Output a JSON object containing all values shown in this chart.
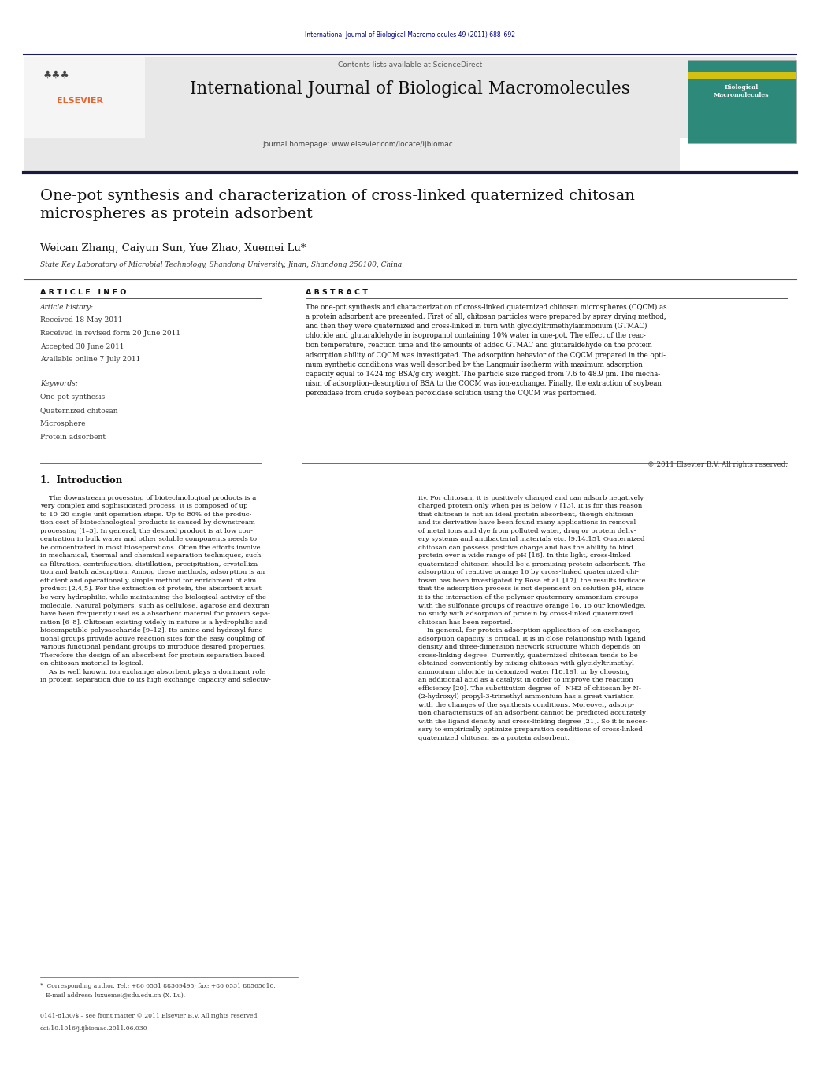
{
  "page_width": 10.21,
  "page_height": 13.51,
  "dpi": 100,
  "background": "#ffffff",
  "top_link_text": "International Journal of Biological Macromolecules 49 (2011) 688–692",
  "top_link_color": "#00008B",
  "header_bg_color": "#e8e8e8",
  "header_line_color": "#1a1a6e",
  "contents_text": "Contents lists available at ",
  "sciencedirect_text": "ScienceDirect",
  "sciencedirect_color": "#1a7abf",
  "journal_name": "International Journal of Biological Macromolecules",
  "journal_homepage_text": "journal homepage: ",
  "journal_url": "www.elsevier.com/locate/ijbiomac",
  "journal_url_color": "#1a7abf",
  "article_title": "One-pot synthesis and characterization of cross-linked quaternized chitosan\nmicrospheres as protein adsorbent",
  "authors": "Weican Zhang, Caiyun Sun, Yue Zhao, Xuemei Lu*",
  "affiliation": "State Key Laboratory of Microbial Technology, Shandong University, Jinan, Shandong 250100, China",
  "article_info_title": "A R T I C L E   I N F O",
  "abstract_title": "A B S T R A C T",
  "article_history_label": "Article history:",
  "received": "Received 18 May 2011",
  "received_revised": "Received in revised form 20 June 2011",
  "accepted": "Accepted 30 June 2011",
  "available": "Available online 7 July 2011",
  "keywords_label": "Keywords:",
  "keywords": [
    "One-pot synthesis",
    "Quaternized chitosan",
    "Microsphere",
    "Protein adsorbent"
  ],
  "abstract_text": "The one-pot synthesis and characterization of cross-linked quaternized chitosan microspheres (CQCM) as\na protein adsorbent are presented. First of all, chitosan particles were prepared by spray drying method,\nand then they were quaternized and cross-linked in turn with glycidyltrimethylammonium (GTMAC)\nchloride and glutaraldehyde in isopropanol containing 10% water in one-pot. The effect of the reac-\ntion temperature, reaction time and the amounts of added GTMAC and glutaraldehyde on the protein\nadsorption ability of CQCM was investigated. The adsorption behavior of the CQCM prepared in the opti-\nmum synthetic conditions was well described by the Langmuir isotherm with maximum adsorption\ncapacity equal to 1424 mg BSA/g dry weight. The particle size ranged from 7.6 to 48.9 μm. The mecha-\nnism of adsorption–desorption of BSA to the CQCM was ion-exchange. Finally, the extraction of soybean\nperoxidase from crude soybean peroxidase solution using the CQCM was performed.",
  "copyright_text": "© 2011 Elsevier B.V. All rights reserved.",
  "section1_title": "1.  Introduction",
  "intro_col1": "    The downstream processing of biotechnological products is a\nvery complex and sophisticated process. It is composed of up\nto 10–20 single unit operation steps. Up to 80% of the produc-\ntion cost of biotechnological products is caused by downstream\nprocessing [1–3]. In general, the desired product is at low con-\ncentration in bulk water and other soluble components needs to\nbe concentrated in most bioseparations. Often the efforts involve\nin mechanical, thermal and chemical separation techniques, such\nas filtration, centrifugation, distillation, precipitation, crystalliza-\ntion and batch adsorption. Among these methods, adsorption is an\nefficient and operationally simple method for enrichment of aim\nproduct [2,4,5]. For the extraction of protein, the absorbent must\nbe very hydrophilic, while maintaining the biological activity of the\nmolecule. Natural polymers, such as cellulose, agarose and dextran\nhave been frequently used as a absorbent material for protein sepa-\nration [6–8]. Chitosan existing widely in nature is a hydrophilic and\nbiocompatible polysaccharide [9–12]. Its amino and hydroxyl func-\ntional groups provide active reaction sites for the easy coupling of\nvarious functional pendant groups to introduce desired properties.\nTherefore the design of an absorbent for protein separation based\non chitosan material is logical.\n    As is well known, ion exchange absorbent plays a dominant role\nin protein separation due to its high exchange capacity and selectiv-",
  "intro_col2": "ity. For chitosan, it is positively charged and can adsorb negatively\ncharged protein only when pH is below 7 [13]. It is for this reason\nthat chitosan is not an ideal protein absorbent, though chitosan\nand its derivative have been found many applications in removal\nof metal ions and dye from polluted water, drug or protein deliv-\nery systems and antibacterial materials etc. [9,14,15]. Quaternized\nchitosan can possess positive charge and has the ability to bind\nprotein over a wide range of pH [16]. In this light, cross-linked\nquaternized chitosan should be a promising protein adsorbent. The\nadsorption of reactive orange 16 by cross-linked quaternized chi-\ntosan has been investigated by Rosa et al. [17], the results indicate\nthat the adsorption process is not dependent on solution pH, since\nit is the interaction of the polymer quaternary ammonium groups\nwith the sulfonate groups of reactive orange 16. To our knowledge,\nno study with adsorption of protein by cross-linked quaternized\nchitosan has been reported.\n    In general, for protein adsorption application of ion exchanger,\nadsorption capacity is critical. It is in close relationship with ligand\ndensity and three-dimension network structure which depends on\ncross-linking degree. Currently, quaternized chitosan tends to be\nobtained conveniently by mixing chitosan with glycidyltrimethyl-\nammonium chloride in deionized water [18,19], or by choosing\nan additional acid as a catalyst in order to improve the reaction\nefficiency [20]. The substitution degree of –NH2 of chitosan by N-\n(2-hydroxyl) propyl-3-trimethyl ammonium has a great variation\nwith the changes of the synthesis conditions. Moreover, adsorp-\ntion characteristics of an adsorbent cannot be predicted accurately\nwith the ligand density and cross-linking degree [21]. So it is neces-\nsary to empirically optimize preparation conditions of cross-linked\nquaternized chitosan as a protein adsorbent.",
  "footnote_text": "*  Corresponding author. Tel.: +86 0531 88369495; fax: +86 0531 88565610.\n   E-mail address: luxuemei@sdu.edu.cn (X. Lu).",
  "issn_text": "0141-8130/$ – see front matter © 2011 Elsevier B.V. All rights reserved.",
  "doi_text": "doi:10.1016/j.ijbiomac.2011.06.030"
}
